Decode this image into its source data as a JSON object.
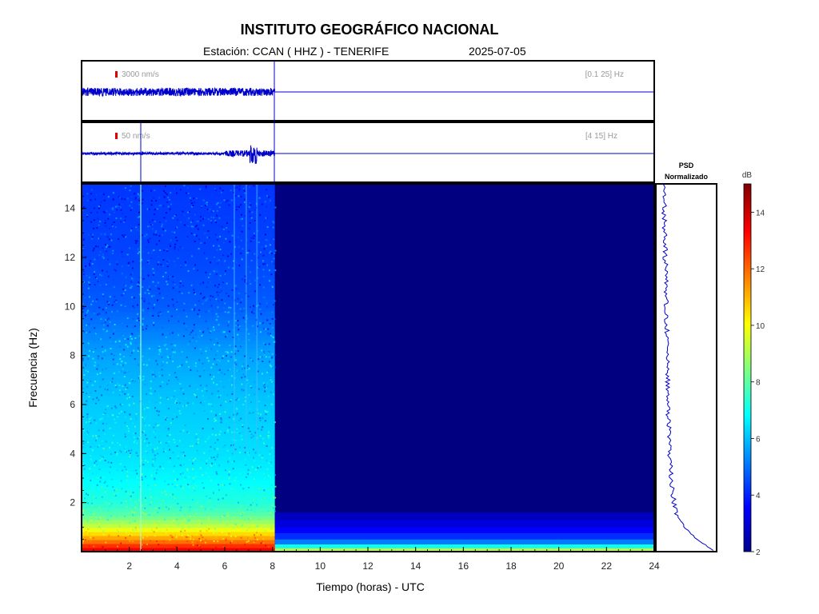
{
  "header": {
    "title": "INSTITUTO GEOGRÁFICO NACIONAL",
    "station": "Estación:  CCAN ( HHZ ) - TENERIFE",
    "date": "2025-07-05"
  },
  "traces": [
    {
      "scale": "3000 nm/s",
      "band": "[0.1 25] Hz"
    },
    {
      "scale": "50 nm/s",
      "band": "[4 15] Hz"
    }
  ],
  "psd_panel": {
    "line1": "PSD",
    "line2": "Normalizado"
  },
  "colors": {
    "trace": "#0000cc",
    "background_spectrogram": "#000080",
    "scale_marker": "#dd0000"
  },
  "chart_data": {
    "type": "heatmap",
    "title": "",
    "xlabel": "Tiempo (horas) - UTC",
    "ylabel": "Frecuencia  (Hz)",
    "xlim": [
      0,
      24
    ],
    "ylim": [
      0,
      15
    ],
    "x_ticks": [
      2,
      4,
      6,
      8,
      10,
      12,
      14,
      16,
      18,
      20,
      22,
      24
    ],
    "y_ticks": [
      2,
      4,
      6,
      8,
      10,
      12,
      14
    ],
    "data_end_hour": 8.1,
    "colorbar": {
      "label": "dB",
      "range": [
        2,
        15
      ],
      "ticks": [
        2,
        4,
        6,
        8,
        10,
        12,
        14
      ],
      "colormap": "jet"
    },
    "spectrogram_profile_db": [
      {
        "freq": 0.1,
        "db": 13.5
      },
      {
        "freq": 0.5,
        "db": 11.5
      },
      {
        "freq": 1.0,
        "db": 9.5
      },
      {
        "freq": 1.5,
        "db": 8.0
      },
      {
        "freq": 2.0,
        "db": 7.3
      },
      {
        "freq": 3.0,
        "db": 6.8
      },
      {
        "freq": 4.0,
        "db": 6.5
      },
      {
        "freq": 6.0,
        "db": 6.2
      },
      {
        "freq": 8.0,
        "db": 5.7
      },
      {
        "freq": 10.0,
        "db": 4.8
      },
      {
        "freq": 12.0,
        "db": 4.5
      },
      {
        "freq": 15.0,
        "db": 4.3
      }
    ],
    "psd_normalized": {
      "freq": [
        0.1,
        0.5,
        1,
        1.5,
        2,
        3,
        4,
        6,
        8,
        10,
        12,
        14,
        15
      ],
      "value": [
        1.0,
        0.7,
        0.45,
        0.3,
        0.24,
        0.18,
        0.15,
        0.12,
        0.1,
        0.08,
        0.06,
        0.04,
        0.03
      ]
    }
  }
}
